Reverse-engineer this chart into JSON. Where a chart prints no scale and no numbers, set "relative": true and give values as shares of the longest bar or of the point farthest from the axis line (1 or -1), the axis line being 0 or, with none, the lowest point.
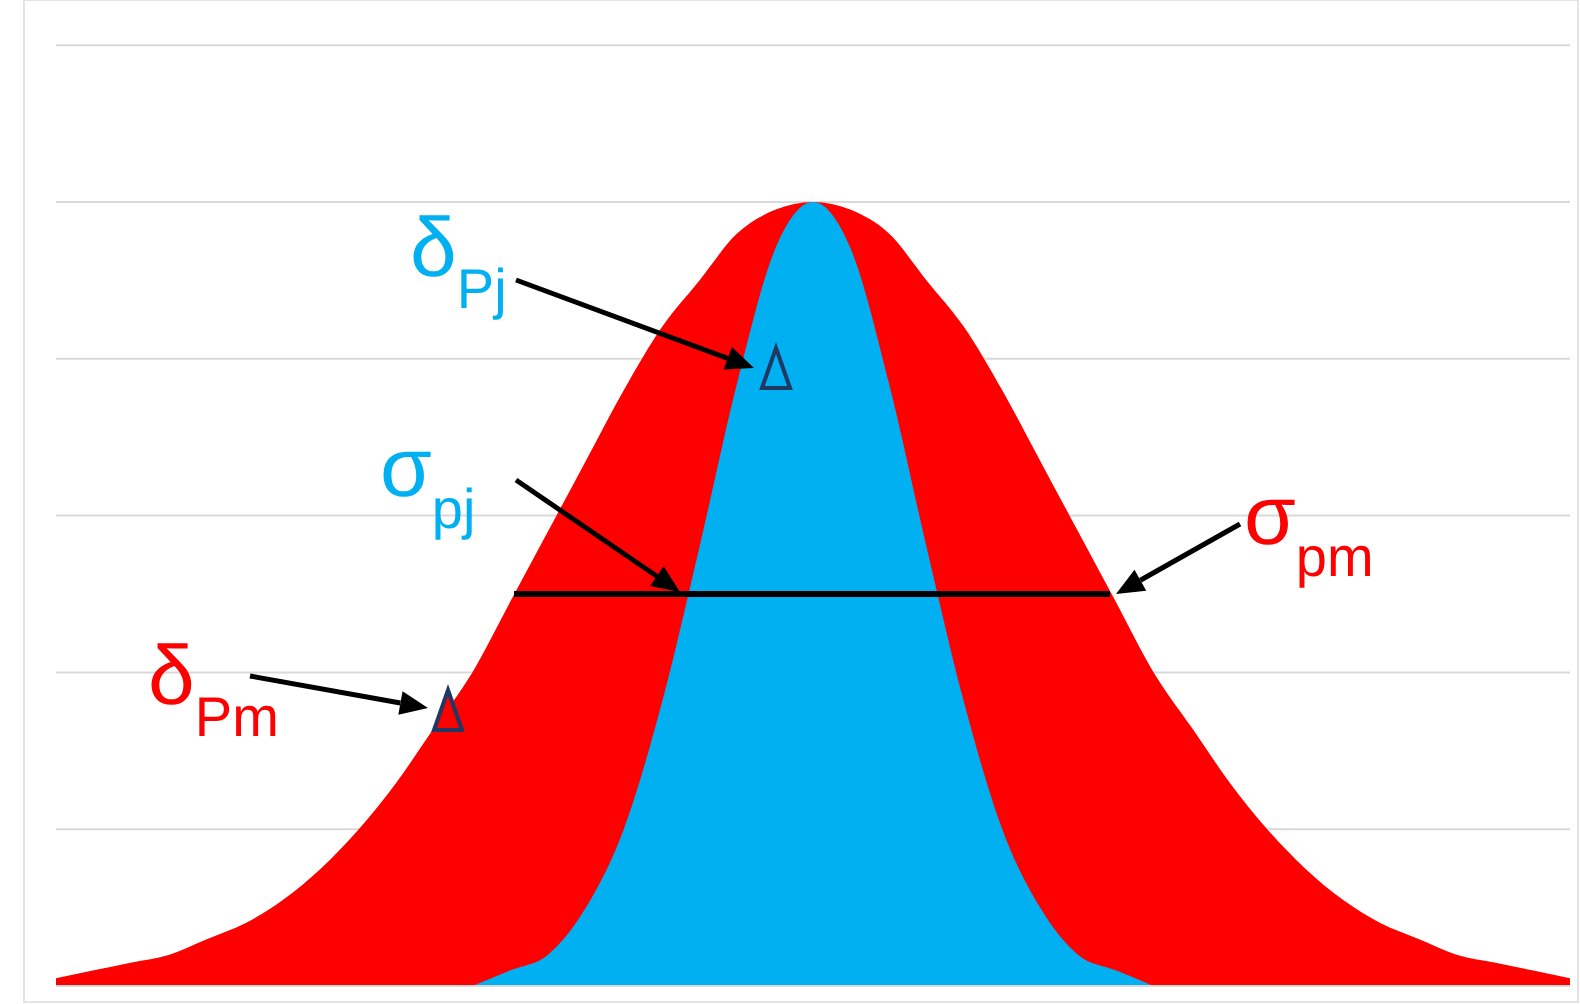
{
  "chart_data": {
    "type": "area",
    "relative": true,
    "grid": "y",
    "categories": [
      null,
      null,
      null,
      null,
      null,
      null,
      null,
      null,
      null,
      null,
      null,
      null,
      null,
      null,
      null,
      null,
      null,
      null,
      null,
      null,
      null,
      null,
      null,
      null,
      null,
      null,
      null,
      null,
      null,
      null,
      null,
      null,
      null,
      null,
      null,
      null,
      null,
      null,
      null,
      null,
      null
    ],
    "series": [
      {
        "color": "#ff0000",
        "values": [
          0.01,
          0.02,
          0.03,
          0.04,
          0.06,
          0.08,
          0.11,
          0.15,
          0.2,
          0.26,
          0.33,
          0.4,
          0.49,
          0.58,
          0.67,
          0.76,
          0.84,
          0.9,
          0.96,
          0.99,
          1,
          0.99,
          0.96,
          0.9,
          0.84,
          0.76,
          0.67,
          0.58,
          0.49,
          0.4,
          0.33,
          0.26,
          0.2,
          0.15,
          0.11,
          0.08,
          0.06,
          0.04,
          0.03,
          0.02,
          0.01
        ]
      },
      {
        "color": "#00b0f0",
        "values": [
          null,
          null,
          null,
          null,
          null,
          null,
          null,
          null,
          null,
          null,
          null,
          0,
          0.02,
          0.04,
          0.1,
          0.2,
          0.36,
          0.56,
          0.77,
          0.94,
          1,
          0.94,
          0.77,
          0.56,
          0.36,
          0.2,
          0.1,
          0.04,
          0.02,
          0,
          null,
          null,
          null,
          null,
          null,
          null,
          null,
          null,
          null,
          null,
          null
        ]
      }
    ],
    "annotations": [
      "δ$_{Pj}$",
      "σ$_{pj}$",
      "σ$_{pm}$",
      "δ$_{Pm}$"
    ]
  }
}
